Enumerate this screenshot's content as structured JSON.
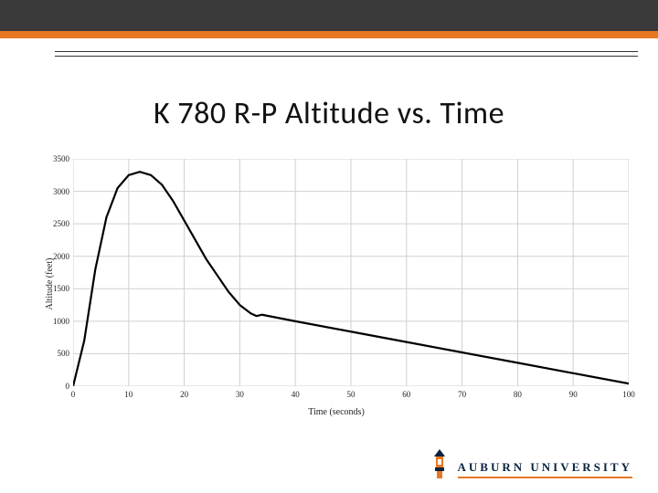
{
  "chart": {
    "type": "line",
    "title": "K 780 R-P Altitude vs. Time",
    "xlabel": "Time (seconds)",
    "ylabel": "Altitude (feet)",
    "xlim": [
      0,
      100
    ],
    "ylim": [
      0,
      3500
    ],
    "xtick_step": 10,
    "ytick_step": 500,
    "xticks": [
      0,
      10,
      20,
      30,
      40,
      50,
      60,
      70,
      80,
      90,
      100
    ],
    "yticks": [
      0,
      500,
      1000,
      1500,
      2000,
      2500,
      3000,
      3500
    ],
    "background_color": "#ffffff",
    "grid_color": "#d0d0d0",
    "series": {
      "color": "#000000",
      "line_width": 2.2,
      "points": [
        [
          0,
          0
        ],
        [
          2,
          700
        ],
        [
          4,
          1800
        ],
        [
          6,
          2600
        ],
        [
          8,
          3050
        ],
        [
          10,
          3250
        ],
        [
          12,
          3300
        ],
        [
          14,
          3250
        ],
        [
          16,
          3100
        ],
        [
          18,
          2850
        ],
        [
          20,
          2550
        ],
        [
          22,
          2250
        ],
        [
          24,
          1950
        ],
        [
          26,
          1700
        ],
        [
          28,
          1450
        ],
        [
          30,
          1250
        ],
        [
          32,
          1120
        ],
        [
          33,
          1080
        ],
        [
          34,
          1100
        ],
        [
          40,
          1000
        ],
        [
          50,
          840
        ],
        [
          60,
          680
        ],
        [
          70,
          520
        ],
        [
          80,
          360
        ],
        [
          90,
          200
        ],
        [
          100,
          40
        ]
      ]
    },
    "title_fontsize": 34,
    "label_fontsize": 10,
    "tick_fontsize": 9,
    "font_family": "Georgia, serif"
  },
  "header": {
    "dark_color": "#3a3a3a",
    "orange_color": "#e87722"
  },
  "footer": {
    "logo_text": "AUBURN UNIVERSITY",
    "logo_color": "#0b2340",
    "logo_accent": "#e87722"
  }
}
